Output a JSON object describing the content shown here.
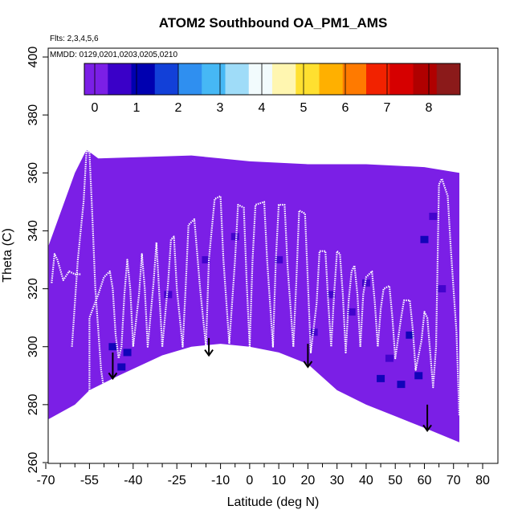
{
  "chart_data": {
    "type": "heatmap",
    "title": "ATOM2 Southbound OA_PM1_AMS",
    "flights_note": "Flts: 2,3,4,5,6",
    "dates_note": "MMDD: 0129,0201,0203,0205,0210",
    "xlabel": "Latitude (deg N)",
    "ylabel": "Theta (C)",
    "xlim": [
      -70,
      80
    ],
    "ylim": [
      260,
      400
    ],
    "x_ticks": [
      -70,
      -55,
      -40,
      -25,
      -10,
      0,
      10,
      20,
      30,
      40,
      50,
      60,
      70,
      80
    ],
    "x_minor_ticks": [
      -65,
      -60,
      -50,
      -45,
      -35,
      -30,
      -20,
      -15,
      -5,
      5,
      15,
      25,
      35,
      45,
      55,
      65,
      75
    ],
    "y_ticks": [
      260,
      280,
      300,
      320,
      340,
      360,
      380,
      400
    ],
    "colorbar": {
      "min": -0.25,
      "max": 8.75,
      "tick_values": [
        0,
        1,
        2,
        3,
        4,
        5,
        6,
        7,
        8
      ],
      "tick_labels": [
        "0",
        "1",
        "2",
        "3",
        "4",
        "5",
        "6",
        "7",
        "8"
      ],
      "colors": [
        "#7b1fe6",
        "#3a00c8",
        "#0000b0",
        "#1240d8",
        "#2f8ff0",
        "#46b8f5",
        "#9fdcf8",
        "#f2fbfd",
        "#fff6b0",
        "#ffe030",
        "#ffb000",
        "#ff7a00",
        "#f22200",
        "#d60000",
        "#b00000",
        "#8b1a1a"
      ]
    },
    "coverage_top": [
      [
        -69,
        335
      ],
      [
        -60,
        360
      ],
      [
        -56,
        368
      ],
      [
        -52,
        365
      ],
      [
        -20,
        366
      ],
      [
        -10,
        365
      ],
      [
        0,
        364
      ],
      [
        20,
        363
      ],
      [
        40,
        363
      ],
      [
        60,
        362
      ],
      [
        72,
        360
      ]
    ],
    "coverage_bottom": [
      [
        -69,
        275
      ],
      [
        -60,
        280
      ],
      [
        -55,
        285
      ],
      [
        -45,
        290
      ],
      [
        -30,
        297
      ],
      [
        -20,
        300
      ],
      [
        -10,
        301
      ],
      [
        0,
        300
      ],
      [
        10,
        298
      ],
      [
        20,
        294
      ],
      [
        30,
        285
      ],
      [
        40,
        280
      ],
      [
        50,
        276
      ],
      [
        60,
        272
      ],
      [
        72,
        267
      ]
    ],
    "cells": [
      {
        "lat": -47,
        "theta": 300,
        "value": 1.2
      },
      {
        "lat": -44,
        "theta": 293,
        "value": 1.0
      },
      {
        "lat": -42,
        "theta": 298,
        "value": 0.9
      },
      {
        "lat": -28,
        "theta": 318,
        "value": 0.8
      },
      {
        "lat": -15,
        "theta": 330,
        "value": 0.6
      },
      {
        "lat": -5,
        "theta": 338,
        "value": 0.7
      },
      {
        "lat": 10,
        "theta": 330,
        "value": 0.5
      },
      {
        "lat": 22,
        "theta": 305,
        "value": 0.7
      },
      {
        "lat": 28,
        "theta": 318,
        "value": 0.6
      },
      {
        "lat": 35,
        "theta": 312,
        "value": 0.7
      },
      {
        "lat": 40,
        "theta": 322,
        "value": 0.6
      },
      {
        "lat": 45,
        "theta": 289,
        "value": 1.3
      },
      {
        "lat": 48,
        "theta": 296,
        "value": 0.8
      },
      {
        "lat": 52,
        "theta": 287,
        "value": 1.2
      },
      {
        "lat": 55,
        "theta": 304,
        "value": 0.9
      },
      {
        "lat": 58,
        "theta": 290,
        "value": 1.1
      },
      {
        "lat": 60,
        "theta": 337,
        "value": 0.9
      },
      {
        "lat": 63,
        "theta": 345,
        "value": 0.8
      },
      {
        "lat": 66,
        "theta": 320,
        "value": 0.7
      }
    ],
    "profiles": [
      [
        [
          -68,
          322
        ],
        [
          -67,
          332
        ],
        [
          -66,
          330
        ],
        [
          -64,
          323
        ],
        [
          -62,
          326
        ],
        [
          -60,
          325
        ],
        [
          -58,
          325
        ]
      ],
      [
        [
          -61,
          300
        ],
        [
          -59,
          330
        ],
        [
          -57,
          350
        ],
        [
          -56,
          368
        ],
        [
          -55,
          367
        ],
        [
          -54,
          345
        ],
        [
          -53,
          320
        ],
        [
          -51,
          292
        ],
        [
          -50,
          285
        ]
      ],
      [
        [
          -55,
          284
        ],
        [
          -55,
          310
        ],
        [
          -52,
          318
        ],
        [
          -50,
          324
        ],
        [
          -48,
          326
        ],
        [
          -47,
          320
        ],
        [
          -46,
          304
        ],
        [
          -45,
          296
        ],
        [
          -44,
          300
        ],
        [
          -43,
          318
        ],
        [
          -42,
          330
        ],
        [
          -41,
          320
        ],
        [
          -40,
          300
        ],
        [
          -38,
          318
        ],
        [
          -37,
          332
        ],
        [
          -36,
          320
        ],
        [
          -35,
          300
        ],
        [
          -33,
          322
        ],
        [
          -32,
          336
        ],
        [
          -31,
          318
        ],
        [
          -30,
          300
        ]
      ],
      [
        [
          -30,
          300
        ],
        [
          -28,
          322
        ],
        [
          -27,
          337
        ],
        [
          -26,
          338
        ],
        [
          -25,
          320
        ],
        [
          -23,
          300
        ],
        [
          -22,
          320
        ],
        [
          -21,
          342
        ],
        [
          -19,
          344
        ],
        [
          -17,
          320
        ],
        [
          -15,
          300
        ],
        [
          -14,
          330
        ],
        [
          -12,
          351
        ],
        [
          -10,
          352
        ],
        [
          -9,
          330
        ],
        [
          -7,
          301
        ]
      ],
      [
        [
          -7,
          301
        ],
        [
          -5,
          330
        ],
        [
          -4,
          349
        ],
        [
          -2,
          348
        ],
        [
          -1,
          322
        ],
        [
          0,
          300
        ],
        [
          1,
          330
        ],
        [
          2,
          349
        ],
        [
          5,
          350
        ],
        [
          6,
          330
        ],
        [
          8,
          300
        ],
        [
          9,
          330
        ],
        [
          10,
          349
        ],
        [
          12,
          349
        ],
        [
          13,
          328
        ],
        [
          15,
          300
        ]
      ],
      [
        [
          15,
          300
        ],
        [
          16,
          322
        ],
        [
          17,
          347
        ],
        [
          19,
          346
        ],
        [
          20,
          322
        ],
        [
          21,
          298
        ],
        [
          23,
          315
        ],
        [
          24,
          333
        ],
        [
          26,
          333
        ],
        [
          27,
          315
        ],
        [
          28,
          300
        ],
        [
          29,
          318
        ],
        [
          30,
          333
        ],
        [
          31,
          332
        ],
        [
          32,
          318
        ],
        [
          33,
          298
        ],
        [
          34,
          316
        ],
        [
          35,
          326
        ],
        [
          36,
          328
        ],
        [
          37,
          318
        ],
        [
          38,
          300
        ]
      ],
      [
        [
          38,
          300
        ],
        [
          39,
          318
        ],
        [
          40,
          324
        ],
        [
          42,
          326
        ],
        [
          43,
          315
        ],
        [
          44,
          300
        ],
        [
          45,
          313
        ],
        [
          46,
          320
        ],
        [
          48,
          321
        ],
        [
          49,
          310
        ],
        [
          50,
          296
        ],
        [
          52,
          310
        ],
        [
          53,
          316
        ],
        [
          55,
          316
        ],
        [
          56,
          306
        ],
        [
          57,
          292
        ],
        [
          59,
          302
        ],
        [
          60,
          312
        ],
        [
          61,
          310
        ],
        [
          62,
          298
        ],
        [
          63,
          286
        ],
        [
          64,
          300
        ],
        [
          65,
          356
        ],
        [
          66,
          358
        ],
        [
          68,
          352
        ],
        [
          69,
          335
        ],
        [
          70,
          320
        ],
        [
          71,
          305
        ],
        [
          72,
          276
        ]
      ]
    ],
    "arrows": [
      {
        "lat": -47,
        "theta_top": 298,
        "theta_tip": 289
      },
      {
        "lat": -14,
        "theta_top": 303,
        "theta_tip": 297
      },
      {
        "lat": 20,
        "theta_top": 301,
        "theta_tip": 293
      },
      {
        "lat": 61,
        "theta_top": 280,
        "theta_tip": 271
      }
    ]
  }
}
